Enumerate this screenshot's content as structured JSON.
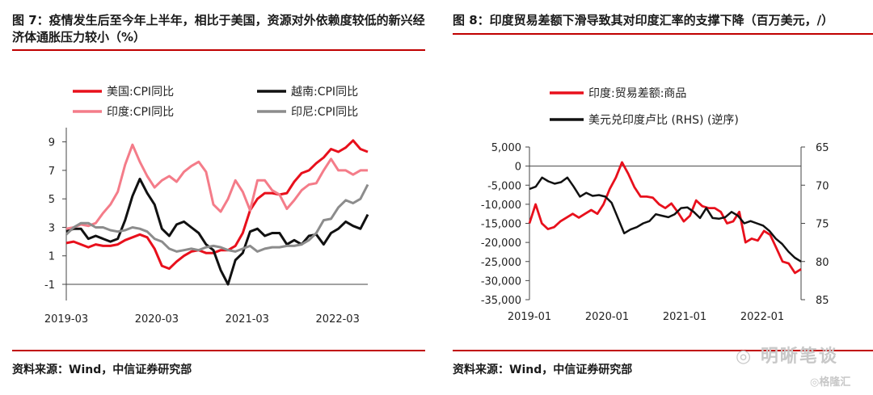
{
  "left": {
    "title": "图 7：疫情发生后至今年上半年，相比于美国，资源对外依赖度较低的新兴经济体通胀压力较小（%）",
    "source": "资料来源：Wind，中信证券研究部",
    "chart_data": {
      "type": "line",
      "x_tick_labels": [
        "2019-03",
        "2020-03",
        "2021-03",
        "2022-03"
      ],
      "x_start": "2019-03",
      "x_end": "2022-07",
      "y_tick_labels": [
        "9",
        "7",
        "5",
        "3",
        "1",
        "-1"
      ],
      "ylim": [
        -1,
        10
      ],
      "series": [
        {
          "name": "美国:CPI同比",
          "color": "#e8101c",
          "values": [
            1.9,
            2.0,
            1.8,
            1.6,
            1.8,
            1.7,
            1.7,
            1.8,
            2.1,
            2.3,
            2.5,
            2.3,
            1.5,
            0.3,
            0.1,
            0.6,
            1.0,
            1.3,
            1.4,
            1.2,
            1.2,
            1.4,
            1.4,
            1.7,
            2.6,
            4.2,
            5.0,
            5.4,
            5.4,
            5.3,
            5.4,
            6.2,
            6.8,
            7.0,
            7.5,
            7.9,
            8.5,
            8.3,
            8.6,
            9.1,
            8.5,
            8.3
          ]
        },
        {
          "name": "越南:CPI同比",
          "color": "#111111",
          "values": [
            2.7,
            2.9,
            2.9,
            2.2,
            2.4,
            2.2,
            2.0,
            2.2,
            3.5,
            5.2,
            6.4,
            5.4,
            4.6,
            2.9,
            2.4,
            3.2,
            3.4,
            3.0,
            2.6,
            1.8,
            1.4,
            0.0,
            -1.0,
            0.7,
            1.2,
            2.7,
            2.9,
            2.4,
            2.6,
            2.6,
            1.8,
            2.1,
            1.8,
            2.4,
            2.5,
            1.8,
            2.6,
            2.9,
            3.4,
            3.1,
            2.9,
            3.9
          ]
        },
        {
          "name": "印度:CPI同比",
          "color": "#f47c89",
          "values": [
            2.9,
            3.0,
            3.2,
            3.1,
            3.3,
            4.0,
            4.6,
            5.5,
            7.4,
            8.8,
            7.6,
            6.6,
            5.8,
            6.3,
            6.6,
            6.2,
            6.9,
            7.3,
            7.6,
            6.9,
            4.6,
            4.1,
            5.0,
            6.3,
            5.5,
            4.2,
            6.3,
            6.3,
            5.6,
            5.3,
            4.3,
            4.9,
            5.6,
            6.0,
            6.1,
            7.0,
            7.8,
            7.0,
            7.0,
            6.7,
            7.0,
            7.0
          ]
        },
        {
          "name": "印尼:CPI同比",
          "color": "#8c8c8c",
          "values": [
            2.5,
            3.0,
            3.3,
            3.3,
            3.0,
            3.0,
            2.8,
            2.7,
            2.8,
            3.0,
            2.9,
            2.7,
            2.2,
            2.0,
            1.5,
            1.3,
            1.4,
            1.5,
            1.4,
            1.6,
            1.7,
            1.6,
            1.4,
            1.3,
            1.5,
            1.7,
            1.3,
            1.5,
            1.6,
            1.6,
            1.7,
            1.7,
            1.8,
            2.1,
            2.6,
            3.5,
            3.6,
            4.4,
            4.9,
            4.7,
            5.0,
            6.0
          ]
        }
      ]
    }
  },
  "right": {
    "title": "图 8：印度贸易差额下滑导致其对印度汇率的支撑下降（百万美元，/）",
    "source": "资料来源：Wind，中信证券研究部",
    "chart_data": {
      "type": "line",
      "x_tick_labels": [
        "2019-01",
        "2020-01",
        "2021-01",
        "2022-01"
      ],
      "x_start": "2019-01",
      "x_end": "2022-07",
      "y_left_tick_labels": [
        "5,000",
        "0",
        "-5,000",
        "-10,000",
        "-15,000",
        "-20,000",
        "-25,000",
        "-30,000",
        "-35,000"
      ],
      "ylim_left": [
        -35000,
        5000
      ],
      "y_right_tick_labels": [
        "65",
        "70",
        "75",
        "80",
        "85"
      ],
      "ylim_right": [
        65,
        85
      ],
      "right_axis_inverted": true,
      "series": [
        {
          "name": "印度:贸易差额:商品",
          "color": "#e8101c",
          "axis": "left",
          "values": [
            -15000,
            -10000,
            -15000,
            -16500,
            -16000,
            -14500,
            -13500,
            -12500,
            -13500,
            -12500,
            -11500,
            -12500,
            -10000,
            -6000,
            -3000,
            1000,
            -2000,
            -5500,
            -8000,
            -8000,
            -8300,
            -10000,
            -11000,
            -9800,
            -12000,
            -14500,
            -13000,
            -9000,
            -10500,
            -11000,
            -11000,
            -12000,
            -15000,
            -14500,
            -12000,
            -20000,
            -19000,
            -19500,
            -17000,
            -18000,
            -21500,
            -25000,
            -25500,
            -28000,
            -27000
          ]
        },
        {
          "name": "美元兑印度卢比 (RHS) (逆序)",
          "color": "#111111",
          "axis": "right",
          "values": [
            70.5,
            70.2,
            69.0,
            69.5,
            69.8,
            69.6,
            69.0,
            70.2,
            71.5,
            71.0,
            71.4,
            71.3,
            71.5,
            72.3,
            74.3,
            76.3,
            75.8,
            75.5,
            75.0,
            74.7,
            73.8,
            74.0,
            74.2,
            73.8,
            73.0,
            72.9,
            73.5,
            74.3,
            73.0,
            74.3,
            74.4,
            74.2,
            73.5,
            74.0,
            75.0,
            74.7,
            75.0,
            75.3,
            76.0,
            77.0,
            77.7,
            78.7,
            79.5,
            80.0
          ]
        }
      ]
    }
  }
}
